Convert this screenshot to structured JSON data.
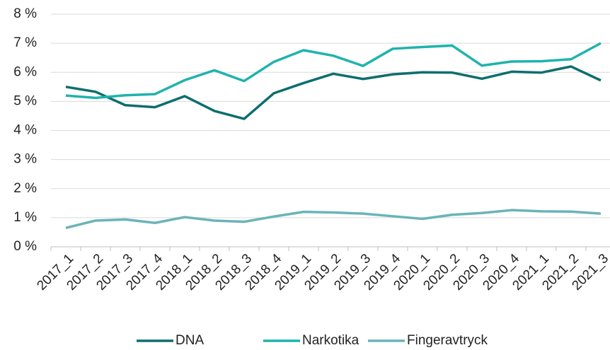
{
  "chart_data": {
    "type": "line",
    "categories": [
      "2017_1",
      "2017_2",
      "2017_3",
      "2017_4",
      "2018_1",
      "2018_2",
      "2018_3",
      "2018_4",
      "2019_1",
      "2019_2",
      "2019_3",
      "2019_4",
      "2020_1",
      "2020_2",
      "2020_3",
      "2020_4",
      "2021_1",
      "2021_2",
      "2021_3"
    ],
    "series": [
      {
        "name": "DNA",
        "color": "#0e6e6e",
        "values": [
          5.5,
          5.33,
          4.87,
          4.8,
          5.18,
          4.67,
          4.4,
          5.28,
          5.63,
          5.95,
          5.77,
          5.93,
          6.0,
          5.99,
          5.78,
          6.02,
          5.99,
          6.2,
          5.72
        ]
      },
      {
        "name": "Narkotika",
        "color": "#1fb3ad",
        "values": [
          5.2,
          5.12,
          5.21,
          5.25,
          5.73,
          6.07,
          5.7,
          6.36,
          6.76,
          6.57,
          6.22,
          6.81,
          6.87,
          6.92,
          6.23,
          6.37,
          6.38,
          6.45,
          7.0
        ]
      },
      {
        "name": "Fingeravtryck",
        "color": "#6ab4b8",
        "values": [
          0.65,
          0.9,
          0.94,
          0.82,
          1.02,
          0.9,
          0.86,
          1.04,
          1.2,
          1.18,
          1.14,
          1.05,
          0.96,
          1.1,
          1.16,
          1.26,
          1.22,
          1.21,
          1.14
        ]
      }
    ],
    "ylim": [
      0,
      8
    ],
    "yticks": [
      {
        "value": 0,
        "label": "0 %"
      },
      {
        "value": 1,
        "label": "1 %"
      },
      {
        "value": 2,
        "label": "2 %"
      },
      {
        "value": 3,
        "label": "3 %"
      },
      {
        "value": 4,
        "label": "4 %"
      },
      {
        "value": 5,
        "label": "5 %"
      },
      {
        "value": 6,
        "label": "6 %"
      },
      {
        "value": 7,
        "label": "7 %"
      },
      {
        "value": 8,
        "label": "8 %"
      }
    ],
    "grid": true,
    "legend": "bottom"
  }
}
